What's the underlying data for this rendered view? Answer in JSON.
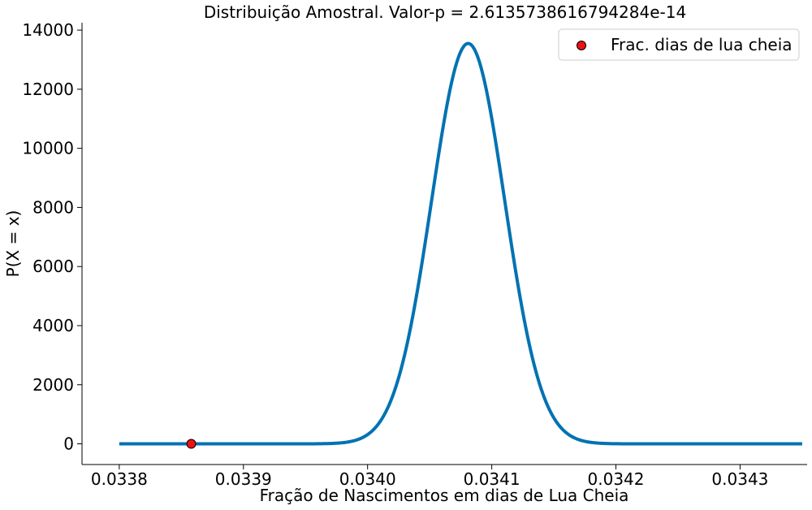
{
  "chart_data": {
    "type": "line",
    "title": "Distribuição Amostral. Valor-p = 2.6135738616794284e-14",
    "xlabel": "Fração de Nascimentos em dias de Lua Cheia",
    "ylabel": "P(X = x)",
    "xlim": [
      0.03377,
      0.034354
    ],
    "ylim": [
      -700,
      14250
    ],
    "x_ticks": [
      0.0338,
      0.0339,
      0.034,
      0.0341,
      0.0342,
      0.0343
    ],
    "x_tick_labels": [
      "0.0338",
      "0.0339",
      "0.0340",
      "0.0341",
      "0.0342",
      "0.0343"
    ],
    "y_ticks": [
      0,
      2000,
      4000,
      6000,
      8000,
      10000,
      12000,
      14000
    ],
    "y_tick_labels": [
      "0",
      "2000",
      "4000",
      "6000",
      "8000",
      "10000",
      "12000",
      "14000"
    ],
    "grid": false,
    "legend_position": "top-right",
    "series": [
      {
        "kind": "line",
        "color": "#0072B2",
        "distribution": "normal",
        "mean": 0.034081,
        "std": 2.95e-05,
        "peak": 13550,
        "x_range": [
          0.0338,
          0.03435
        ],
        "samples": 400
      },
      {
        "kind": "scatter",
        "name": "Frac. dias de lua cheia",
        "color": "#ee1111",
        "edge_color": "#000000",
        "points": [
          {
            "x": 0.033858,
            "y": 0
          }
        ]
      }
    ]
  }
}
